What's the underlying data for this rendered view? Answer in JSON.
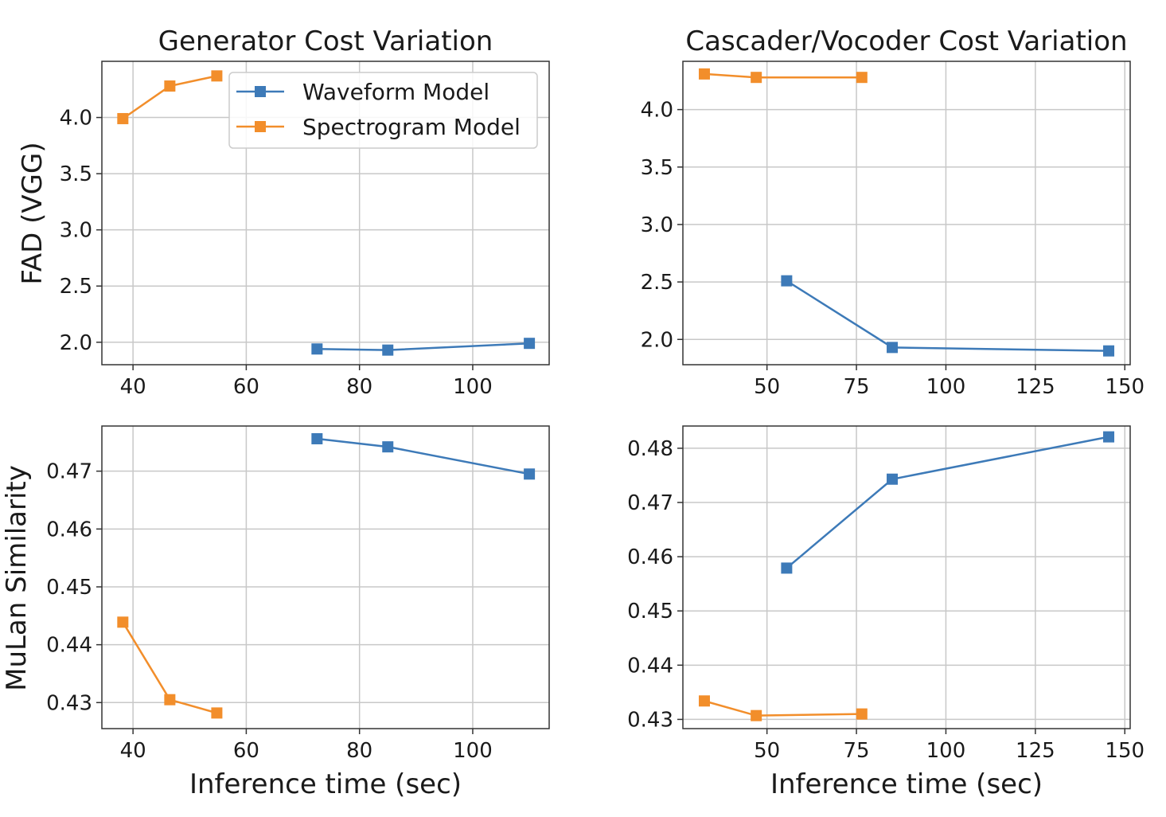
{
  "colors": {
    "waveform": "#3d7ab8",
    "spectrogram": "#f28e2b",
    "grid": "#c8c8c8",
    "axis": "#333333"
  },
  "legend_entries": [
    "Waveform Model",
    "Spectrogram Model"
  ],
  "chart_data": [
    {
      "type": "line",
      "title": "Generator Cost Variation",
      "xlabel": "",
      "ylabel": "FAD (VGG)",
      "xlim": [
        34.5,
        113.5
      ],
      "ylim": [
        1.8,
        4.5
      ],
      "xticks": [
        40,
        60,
        80,
        100
      ],
      "yticks": [
        2.0,
        2.5,
        3.0,
        3.5,
        4.0
      ],
      "xtick_labels": [
        "40",
        "60",
        "80",
        "100"
      ],
      "ytick_labels": [
        "2.0",
        "2.5",
        "3.0",
        "3.5",
        "4.0"
      ],
      "grid": true,
      "legend": "top-right",
      "series": [
        {
          "name": "Waveform Model",
          "x": [
            72.5,
            85,
            110
          ],
          "y": [
            1.94,
            1.93,
            1.99
          ]
        },
        {
          "name": "Spectrogram Model",
          "x": [
            38.2,
            46.5,
            54.8
          ],
          "y": [
            3.99,
            4.28,
            4.37
          ]
        }
      ]
    },
    {
      "type": "line",
      "title": "Cascader/Vocoder Cost Variation",
      "xlabel": "",
      "ylabel": "",
      "xlim": [
        26.5,
        151.5
      ],
      "ylim": [
        1.78,
        4.42
      ],
      "xticks": [
        50,
        75,
        100,
        125,
        150
      ],
      "yticks": [
        2.0,
        2.5,
        3.0,
        3.5,
        4.0
      ],
      "xtick_labels": [
        "50",
        "75",
        "100",
        "125",
        "150"
      ],
      "ytick_labels": [
        "2.0",
        "2.5",
        "3.0",
        "3.5",
        "4.0"
      ],
      "grid": true,
      "legend": "",
      "series": [
        {
          "name": "Waveform Model",
          "x": [
            55.5,
            85,
            145.5
          ],
          "y": [
            2.51,
            1.93,
            1.9
          ]
        },
        {
          "name": "Spectrogram Model",
          "x": [
            32.5,
            47,
            76.5
          ],
          "y": [
            4.31,
            4.28,
            4.28
          ]
        }
      ]
    },
    {
      "type": "line",
      "title": "",
      "xlabel": "Inference time (sec)",
      "ylabel": "MuLan Similarity",
      "xlim": [
        34.5,
        113.5
      ],
      "ylim": [
        0.4255,
        0.4778
      ],
      "xticks": [
        40,
        60,
        80,
        100
      ],
      "yticks": [
        0.43,
        0.44,
        0.45,
        0.46,
        0.47
      ],
      "xtick_labels": [
        "40",
        "60",
        "80",
        "100"
      ],
      "ytick_labels": [
        "0.43",
        "0.44",
        "0.45",
        "0.46",
        "0.47"
      ],
      "grid": true,
      "legend": "",
      "series": [
        {
          "name": "Waveform Model",
          "x": [
            72.5,
            85,
            110
          ],
          "y": [
            0.4756,
            0.4742,
            0.4695
          ]
        },
        {
          "name": "Spectrogram Model",
          "x": [
            38.2,
            46.5,
            54.8
          ],
          "y": [
            0.4439,
            0.4305,
            0.4282
          ]
        }
      ]
    },
    {
      "type": "line",
      "title": "",
      "xlabel": "Inference time (sec)",
      "ylabel": "",
      "xlim": [
        26.5,
        151.5
      ],
      "ylim": [
        0.4283,
        0.4841
      ],
      "xticks": [
        50,
        75,
        100,
        125,
        150
      ],
      "yticks": [
        0.43,
        0.44,
        0.45,
        0.46,
        0.47,
        0.48
      ],
      "xtick_labels": [
        "50",
        "75",
        "100",
        "125",
        "150"
      ],
      "ytick_labels": [
        "0.43",
        "0.44",
        "0.45",
        "0.46",
        "0.47",
        "0.48"
      ],
      "grid": true,
      "legend": "",
      "series": [
        {
          "name": "Waveform Model",
          "x": [
            55.5,
            85,
            145.5
          ],
          "y": [
            0.4579,
            0.4743,
            0.4821
          ]
        },
        {
          "name": "Spectrogram Model",
          "x": [
            32.5,
            47,
            76.5
          ],
          "y": [
            0.4334,
            0.4307,
            0.431
          ]
        }
      ]
    }
  ]
}
